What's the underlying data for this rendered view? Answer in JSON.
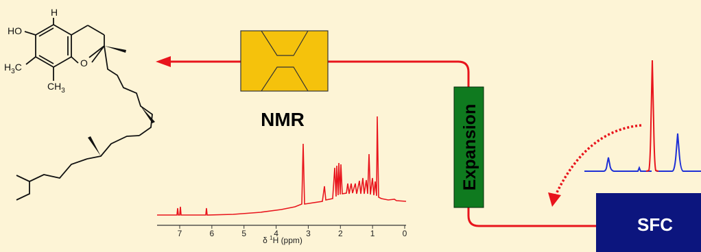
{
  "colors": {
    "background": "#fdf4d6",
    "flow_line": "#e8141c",
    "nmr_cell": "#f5c20c",
    "expansion_box": "#0f7a1f",
    "sfc_box": "#0c157e",
    "nmr_spectrum": "#e8141c",
    "chromatogram_main": "#e8141c",
    "chromatogram_other": "#1d2fd6"
  },
  "molecule": {
    "name": "tocopherol",
    "labels": {
      "hydroxyl": "HO",
      "hydrogen": "H",
      "ring_oxygen": "O",
      "methyl_c": "H",
      "methyl_sub": "3",
      "methyl_c2": "C",
      "ch3_main": "CH",
      "ch3_sub": "3"
    }
  },
  "nmr": {
    "label": "NMR",
    "axis_title_prefix": "δ ",
    "axis_title_sup": "1",
    "axis_title_suffix": "H (ppm)",
    "ticks": [
      "7",
      "6",
      "5",
      "4",
      "3",
      "2",
      "1",
      "0"
    ]
  },
  "expansion": {
    "label": "Expansion"
  },
  "sfc": {
    "label": "SFC"
  },
  "icons": {
    "flow_arrow": "arrow-left-icon",
    "transfer_arrow": "dotted-curved-arrow-icon"
  }
}
